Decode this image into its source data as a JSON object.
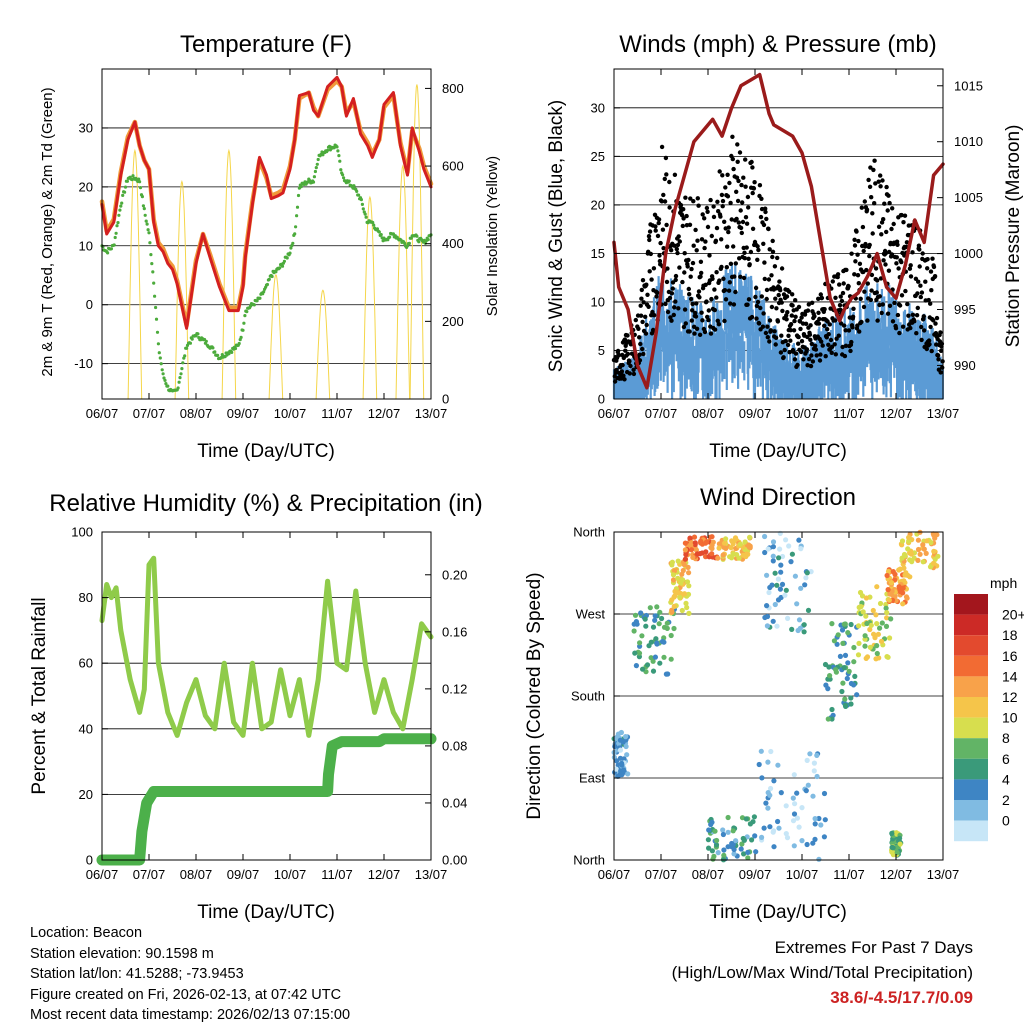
{
  "titles": {
    "temperature": "Temperature (F)",
    "winds": "Winds (mph) & Pressure (mb)",
    "humidity": "Relative Humidity (%) & Precipitation (in)",
    "direction": "Wind Direction"
  },
  "axis_labels": {
    "temp_left": "2m & 9m T (Red, Orange) & 2m Td (Green)",
    "temp_right": "Solar Insolation (Yellow)",
    "wind_left": "Sonic Wind & Gust (Blue, Black)",
    "wind_right": "Station Pressure (Maroon)",
    "rh_left": "Percent & Total Rainfall",
    "dir_left": "Direction (Colored By Speed)",
    "time": "Time (Day/UTC)"
  },
  "time_ticks": [
    "06/07",
    "07/07",
    "08/07",
    "09/07",
    "10/07",
    "11/07",
    "12/07",
    "13/07"
  ],
  "colors": {
    "temp2m": "#d42020",
    "temp9m": "#f09a3a",
    "dewpoint": "#4cab3c",
    "solar": "#f5d64a",
    "gust": "#000000",
    "wind": "#5b9bd5",
    "pressure": "#9a1b1b",
    "rh": "#8fcb4a",
    "precip": "#4cb04a",
    "extremes": "#cc2222"
  },
  "legend": {
    "title": "mph",
    "labels": [
      "20+",
      "18",
      "16",
      "14",
      "12",
      "10",
      "8",
      "6",
      "4",
      "2",
      "0"
    ],
    "colors": [
      "#a3161d",
      "#cc2a26",
      "#e34a2e",
      "#f26b33",
      "#f8a24a",
      "#f5c54a",
      "#d7de4e",
      "#62b466",
      "#3a9a7a",
      "#3e85c4",
      "#80bbe2",
      "#c7e6f7"
    ]
  },
  "chart_data": [
    {
      "name": "temperature",
      "type": "line",
      "title": "Temperature (F)",
      "xlabel": "Time (Day/UTC)",
      "ylabel": "2m & 9m T (Red, Orange) & 2m Td (Green)",
      "ylabel_right": "Solar Insolation (Yellow)",
      "xlim": [
        0,
        7
      ],
      "ylim": [
        -16,
        40
      ],
      "ylim_right": [
        0,
        850
      ],
      "yticks": [
        -10,
        0,
        10,
        20,
        30
      ],
      "yticks_right": [
        0,
        200,
        400,
        600,
        800
      ],
      "x_days": [
        0,
        0.1,
        0.25,
        0.4,
        0.55,
        0.7,
        0.8,
        0.9,
        1.0,
        1.1,
        1.2,
        1.3,
        1.4,
        1.5,
        1.6,
        1.8,
        2.0,
        2.15,
        2.3,
        2.5,
        2.7,
        2.9,
        3.0,
        3.05,
        3.2,
        3.35,
        3.5,
        3.6,
        3.75,
        3.85,
        4.0,
        4.1,
        4.2,
        4.4,
        4.5,
        4.6,
        4.8,
        5.0,
        5.1,
        5.2,
        5.35,
        5.5,
        5.65,
        5.75,
        5.9,
        6.0,
        6.2,
        6.35,
        6.5,
        6.6,
        6.75,
        6.85,
        7.0
      ],
      "series": [
        {
          "name": "2m T",
          "values": [
            17,
            12,
            14,
            22,
            28,
            31,
            27,
            24.5,
            23,
            14,
            10,
            9,
            7,
            6,
            3.5,
            -4,
            7,
            12,
            8,
            3,
            -1,
            -1,
            3,
            8,
            17,
            25,
            22,
            18,
            18.5,
            19,
            23,
            28,
            35.5,
            36,
            33,
            32,
            37,
            38.6,
            37,
            32,
            35,
            29,
            27,
            25,
            28,
            34,
            36,
            27,
            22,
            30,
            26,
            23,
            20
          ]
        },
        {
          "name": "9m T",
          "values": [
            17.5,
            12.5,
            14.5,
            22.5,
            28.5,
            31,
            27,
            24.5,
            23,
            14.5,
            10.5,
            9.5,
            7.5,
            6.5,
            4,
            -3.5,
            7.5,
            12,
            8.5,
            3.5,
            -0.5,
            -0.5,
            3.5,
            8.5,
            17.5,
            24.5,
            21.5,
            18.5,
            19,
            19.5,
            23.5,
            28,
            35,
            36,
            33.5,
            32,
            36.5,
            38,
            37,
            32.5,
            34.5,
            29.5,
            27.5,
            25.5,
            28,
            33.5,
            35.5,
            27.5,
            22.5,
            29.5,
            26.5,
            23.5,
            20.5
          ]
        },
        {
          "name": "2m Td",
          "values": [
            10,
            9,
            10,
            17,
            21.5,
            21.5,
            21,
            16,
            12,
            4,
            -7,
            -12,
            -14,
            -15,
            -14.5,
            -7,
            -5,
            -6,
            -7,
            -9,
            -8,
            -7,
            -4,
            -1,
            0,
            1,
            3,
            5,
            6,
            7,
            9,
            12,
            20,
            21,
            21,
            25,
            26.5,
            27,
            22,
            21,
            20,
            18,
            14,
            14,
            12,
            11,
            12,
            11,
            10,
            12,
            11,
            10.5,
            12
          ]
        },
        {
          "name": "Solar",
          "axis": "right",
          "days_peak": [
            0.7,
            1.7,
            2.7,
            3.7,
            4.7,
            5.7,
            6.4,
            6.7
          ],
          "peak_values": [
            640,
            560,
            640,
            320,
            280,
            520,
            600,
            810
          ]
        }
      ]
    },
    {
      "name": "winds",
      "type": "scatter",
      "title": "Winds (mph) & Pressure (mb)",
      "xlabel": "Time (Day/UTC)",
      "ylabel": "Sonic Wind & Gust (Blue, Black)",
      "ylabel_right": "Station Pressure (Maroon)",
      "xlim": [
        0,
        7
      ],
      "ylim": [
        0,
        34
      ],
      "ylim_right": [
        987,
        1016.5
      ],
      "yticks": [
        0,
        5,
        10,
        15,
        20,
        25,
        30
      ],
      "yticks_right": [
        990,
        995,
        1000,
        1005,
        1010,
        1015
      ],
      "pressure": {
        "x_days": [
          0,
          0.1,
          0.3,
          0.5,
          0.7,
          0.9,
          1.1,
          1.3,
          1.5,
          1.7,
          1.9,
          2.1,
          2.3,
          2.5,
          2.7,
          2.9,
          3.1,
          3.3,
          3.4,
          3.6,
          3.8,
          4.0,
          4.2,
          4.4,
          4.6,
          4.8,
          4.9,
          5.05,
          5.2,
          5.4,
          5.6,
          5.8,
          6.0,
          6.2,
          6.4,
          6.6,
          6.8,
          7.0
        ],
        "values": [
          1001,
          997,
          995,
          990,
          988,
          993,
          1000,
          1004,
          1007,
          1010,
          1011,
          1012,
          1010.5,
          1013,
          1015,
          1015.5,
          1016,
          1012.5,
          1011.5,
          1011,
          1010.5,
          1009,
          1006,
          1001,
          996,
          994,
          995,
          996,
          996.5,
          998,
          1000,
          997,
          996,
          999,
          1003,
          1001,
          1007,
          1008
        ]
      },
      "wind_envelope": {
        "x_days": [
          0,
          0.5,
          1.0,
          1.5,
          2.0,
          2.5,
          3.0,
          3.5,
          4.0,
          4.5,
          4.8,
          5.0,
          5.5,
          6.0,
          6.4,
          6.8,
          7.0
        ],
        "sustained": [
          3,
          5,
          13,
          11,
          9,
          14,
          12,
          7,
          5,
          8,
          9,
          9,
          12,
          11,
          9,
          8,
          3
        ],
        "gust": [
          4,
          8,
          24,
          20,
          18,
          25,
          22,
          13,
          8,
          11,
          12,
          13,
          23,
          19,
          17,
          13,
          5
        ]
      }
    },
    {
      "name": "humidity",
      "type": "line",
      "title": "Relative Humidity (%) & Precipitation (in)",
      "xlabel": "Time (Day/UTC)",
      "ylabel": "Percent & Total Rainfall",
      "xlim": [
        0,
        7
      ],
      "ylim": [
        0,
        100
      ],
      "ylim_right": [
        0,
        0.23
      ],
      "yticks": [
        0,
        20,
        40,
        60,
        80,
        100
      ],
      "yticks_right": [
        "0.00",
        "0.04",
        "0.08",
        "0.12",
        "0.16",
        "0.20"
      ],
      "series": [
        {
          "name": "RH",
          "x_days": [
            0,
            0.1,
            0.2,
            0.3,
            0.4,
            0.6,
            0.8,
            0.9,
            1.0,
            1.1,
            1.2,
            1.4,
            1.6,
            1.8,
            2.0,
            2.2,
            2.4,
            2.6,
            2.8,
            3.0,
            3.2,
            3.4,
            3.6,
            3.8,
            4.0,
            4.2,
            4.4,
            4.6,
            4.8,
            5.0,
            5.2,
            5.4,
            5.6,
            5.8,
            6.0,
            6.2,
            6.4,
            6.6,
            6.8,
            7.0
          ],
          "values": [
            73,
            84,
            80,
            83,
            70,
            55,
            45,
            52,
            90,
            92,
            60,
            45,
            38,
            48,
            55,
            44,
            40,
            60,
            42,
            38,
            60,
            40,
            42,
            58,
            44,
            55,
            38,
            55,
            85,
            60,
            58,
            82,
            60,
            45,
            55,
            45,
            40,
            55,
            72,
            68
          ]
        },
        {
          "name": "Total Rainfall",
          "axis": "right",
          "x_days": [
            0,
            0.8,
            0.85,
            0.95,
            1.1,
            4.8,
            4.82,
            4.9,
            5.1,
            5.9,
            6.0,
            6.2,
            7.0
          ],
          "values": [
            0,
            0,
            0.02,
            0.04,
            0.048,
            0.048,
            0.06,
            0.08,
            0.083,
            0.083,
            0.085,
            0.085,
            0.085
          ]
        }
      ]
    },
    {
      "name": "direction",
      "type": "scatter",
      "title": "Wind Direction",
      "xlabel": "Time (Day/UTC)",
      "ylabel": "Direction (Colored By Speed)",
      "xlim": [
        0,
        7
      ],
      "ylim": [
        0,
        360
      ],
      "yticks": [
        "North",
        "East",
        "South",
        "West",
        "North"
      ],
      "yticks_deg": [
        0,
        90,
        180,
        270,
        360
      ],
      "clusters": [
        {
          "x": [
            0.0,
            0.3
          ],
          "deg": [
            90,
            140
          ],
          "speed": 3
        },
        {
          "x": [
            0.4,
            1.3
          ],
          "deg": [
            200,
            280
          ],
          "speed": 6
        },
        {
          "x": [
            1.2,
            1.6
          ],
          "deg": [
            270,
            330
          ],
          "speed": 12
        },
        {
          "x": [
            1.5,
            2.2
          ],
          "deg": [
            330,
            355
          ],
          "speed": 16
        },
        {
          "x": [
            2.2,
            2.9
          ],
          "deg": [
            330,
            355
          ],
          "speed": 12
        },
        {
          "x": [
            2.0,
            3.0
          ],
          "deg": [
            0,
            50
          ],
          "speed": 5
        },
        {
          "x": [
            3.0,
            4.5
          ],
          "deg": [
            0,
            120
          ],
          "speed": 2
        },
        {
          "x": [
            3.2,
            4.2
          ],
          "deg": [
            250,
            360
          ],
          "speed": 3
        },
        {
          "x": [
            4.5,
            5.2
          ],
          "deg": [
            150,
            260
          ],
          "speed": 6
        },
        {
          "x": [
            5.2,
            5.9
          ],
          "deg": [
            220,
            300
          ],
          "speed": 10
        },
        {
          "x": [
            5.8,
            6.3
          ],
          "deg": [
            280,
            320
          ],
          "speed": 14
        },
        {
          "x": [
            6.1,
            6.9
          ],
          "deg": [
            320,
            360
          ],
          "speed": 12
        },
        {
          "x": [
            5.9,
            6.1
          ],
          "deg": [
            5,
            30
          ],
          "speed": 8
        }
      ]
    }
  ],
  "footer": {
    "location": "Location: Beacon",
    "elevation": "Station elevation: 90.1598 m",
    "latlon": "Station lat/lon: 41.5288; -73.9453",
    "created": "Figure created on Fri, 2026-02-13, at 07:42 UTC",
    "timestamp": "Most recent data timestamp: 2026/02/13 07:15:00",
    "extremes_title": "Extremes For Past 7 Days",
    "extremes_subtitle": "(High/Low/Max Wind/Total Precipitation)",
    "extremes_values": "38.6/-4.5/17.7/0.09"
  }
}
